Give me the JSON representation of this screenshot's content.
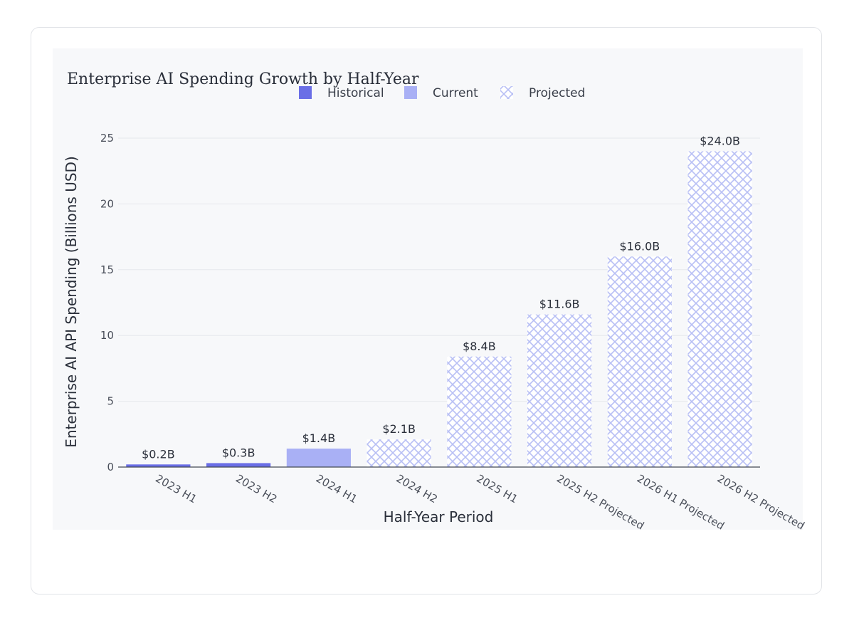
{
  "chart_data": {
    "type": "bar",
    "title": "Enterprise AI Spending Growth by Half-Year",
    "xlabel": "Half-Year Period",
    "ylabel": "Enterprise AI API Spending (Billions USD)",
    "ylim": [
      0,
      25
    ],
    "yticks": [
      0,
      5,
      10,
      15,
      20,
      25
    ],
    "grid": true,
    "legend_position": "top-center",
    "categories": [
      "2023 H1",
      "2023 H2",
      "2024 H1",
      "2024 H2",
      "2025 H1",
      "2025 H2 Projected",
      "2026 H1 Projected",
      "2026 H2 Projected"
    ],
    "values": [
      0.2,
      0.3,
      1.4,
      2.1,
      8.4,
      11.6,
      16.0,
      24.0
    ],
    "labels": [
      "$0.2B",
      "$0.3B",
      "$1.4B",
      "$2.1B",
      "$8.4B",
      "$11.6B",
      "$16.0B",
      "$24.0B"
    ],
    "bar_groups": [
      "Historical",
      "Historical",
      "Current",
      "Projected",
      "Projected",
      "Projected",
      "Projected",
      "Projected"
    ],
    "legend": [
      {
        "name": "Historical",
        "color": "#6a6ee6",
        "pattern": "solid"
      },
      {
        "name": "Current",
        "color": "#a9b0f5",
        "pattern": "solid"
      },
      {
        "name": "Projected",
        "color": "#b8bff5",
        "pattern": "crosshatch"
      }
    ]
  }
}
